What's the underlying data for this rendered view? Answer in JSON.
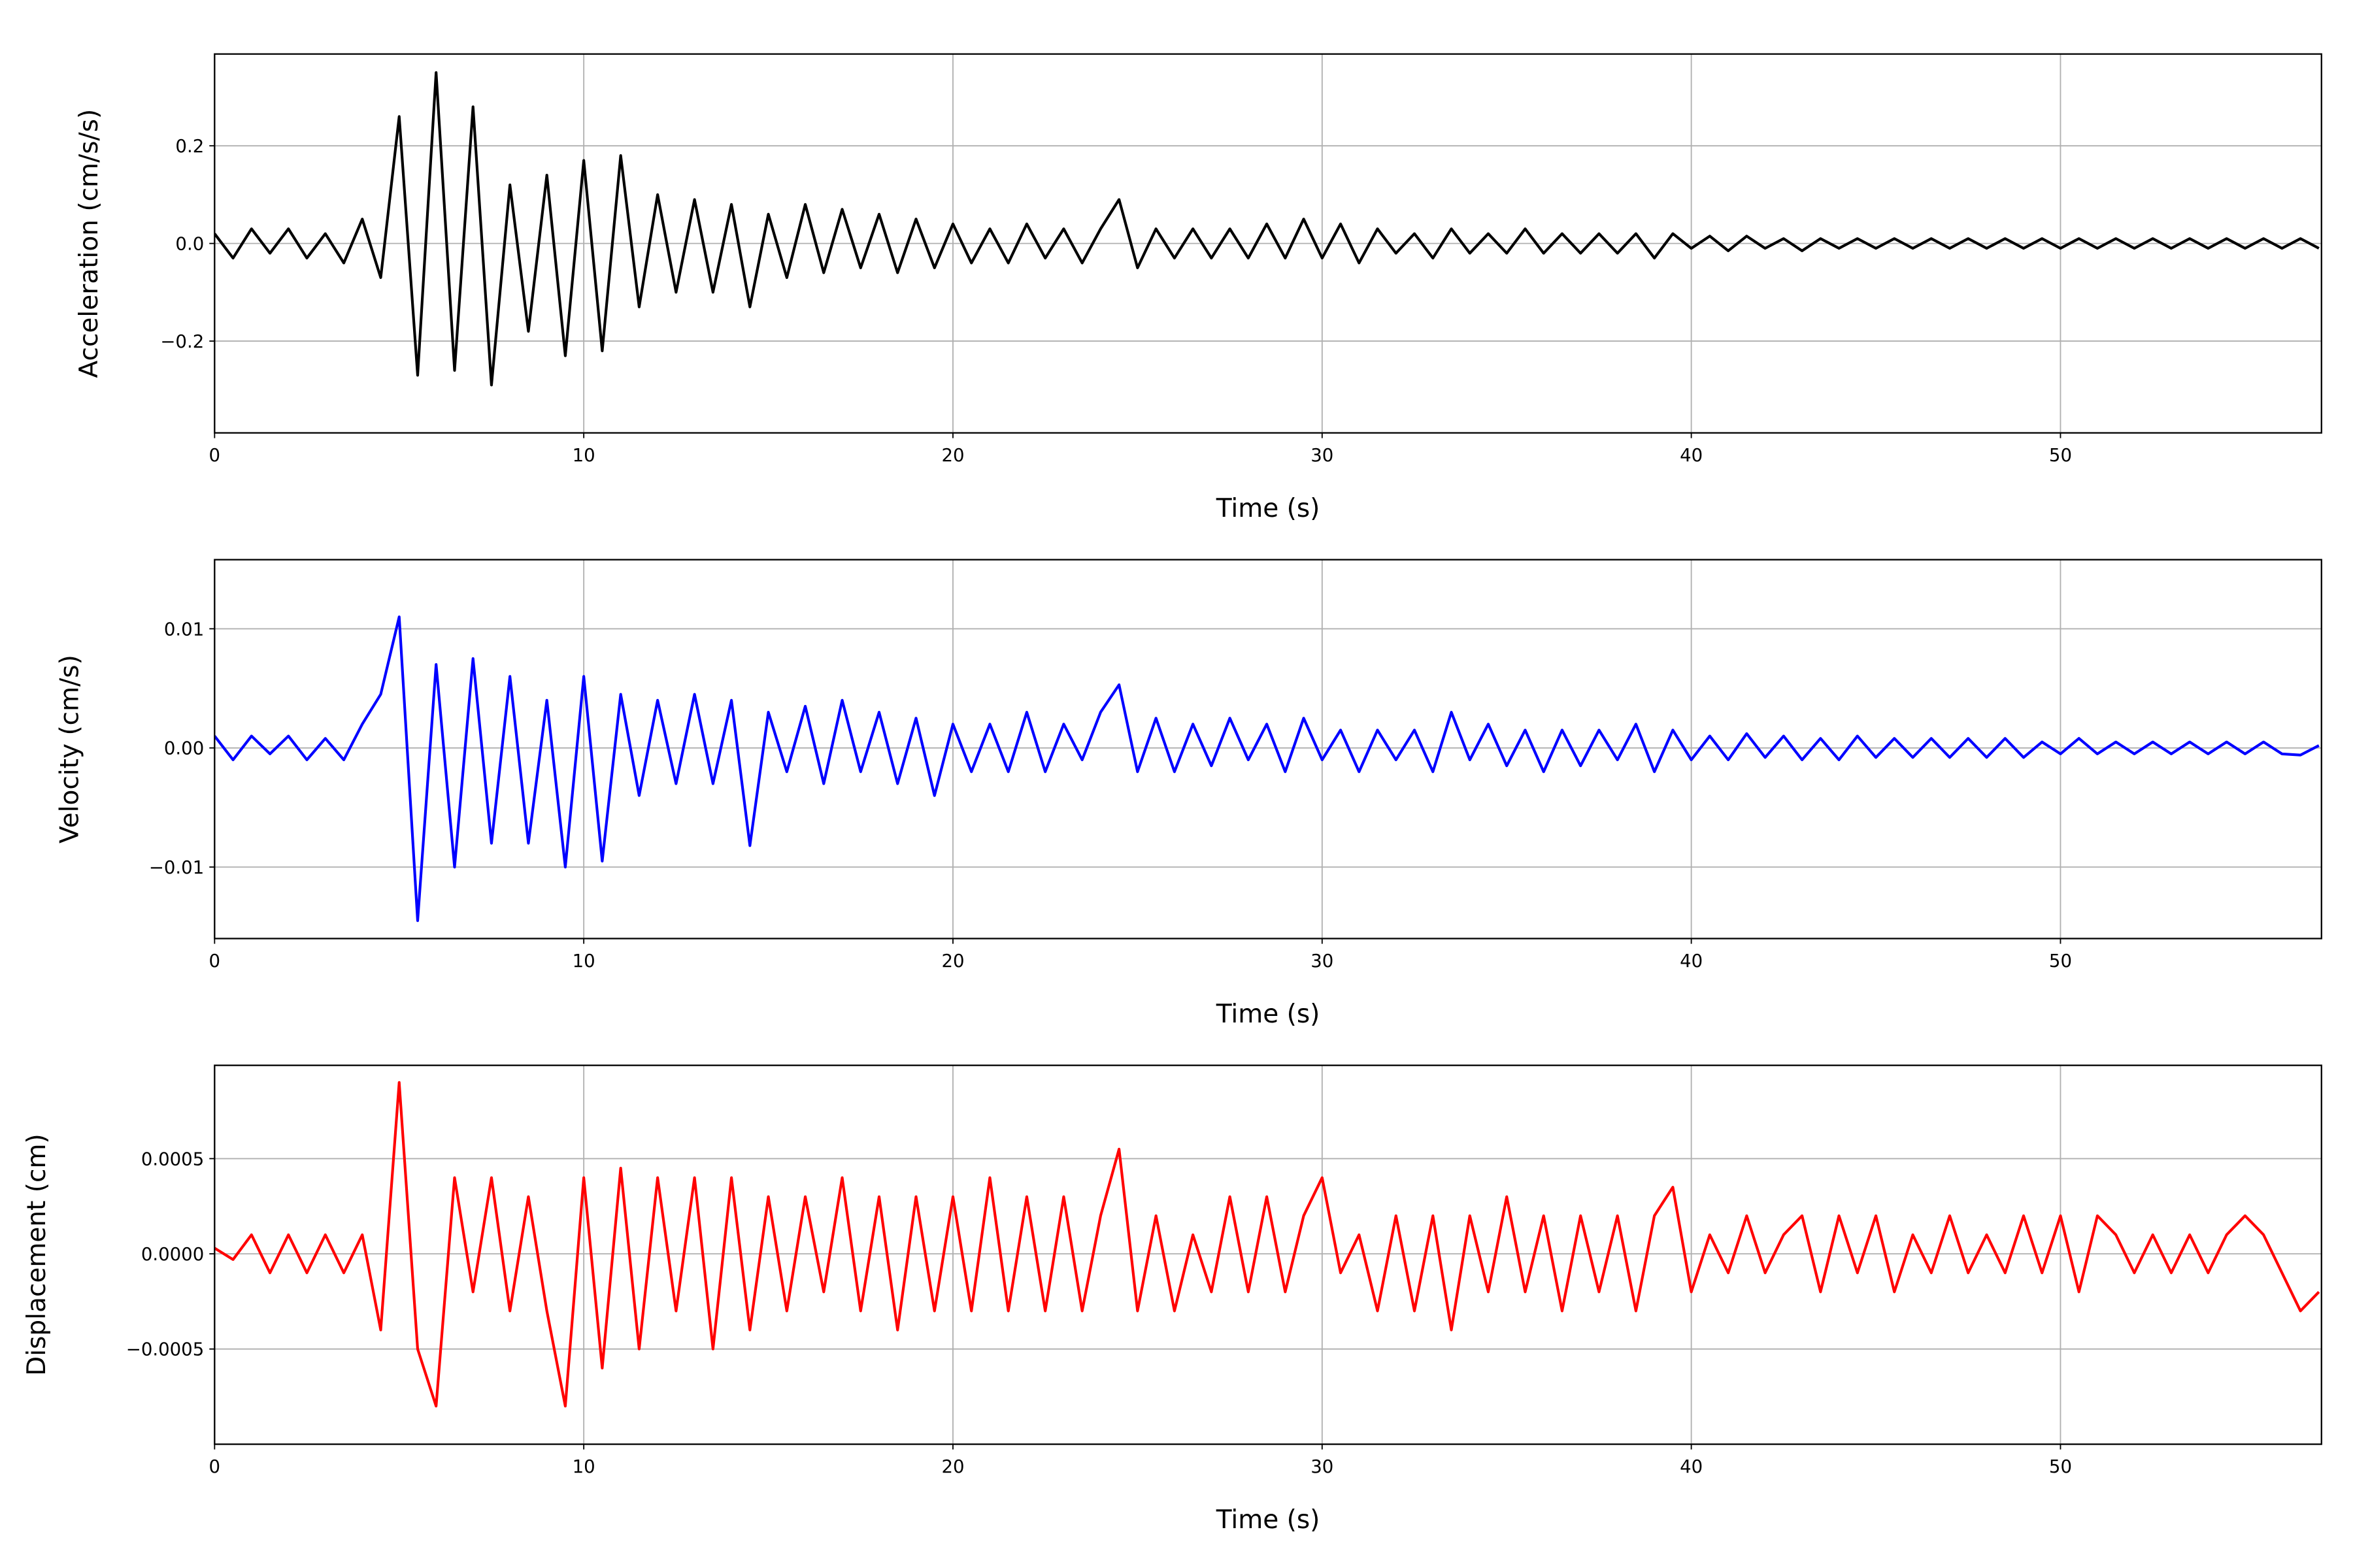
{
  "chart_data": [
    {
      "type": "line",
      "xlabel": "Time (s)",
      "ylabel": "Acceleration (cm/s/s)",
      "color": "#000000",
      "grid": true,
      "xlim": [
        0,
        57.07
      ],
      "xticks": [
        0,
        10,
        20,
        30,
        40,
        50
      ],
      "ylim": [
        -0.388,
        0.388
      ],
      "yticks": [
        {
          "value": -0.2,
          "label": "−0.2"
        },
        {
          "value": 0,
          "label": "0.0"
        },
        0.2
      ],
      "x": [
        0,
        0.5,
        1,
        1.5,
        2,
        2.5,
        3,
        3.5,
        4,
        4.5,
        5,
        5.5,
        6,
        6.5,
        7,
        7.5,
        8,
        8.5,
        9,
        9.5,
        10,
        10.5,
        11,
        11.5,
        12,
        12.5,
        13,
        13.5,
        14,
        14.5,
        15,
        15.5,
        16,
        16.5,
        17,
        17.5,
        18,
        18.5,
        19,
        19.5,
        20,
        20.5,
        21,
        21.5,
        22,
        22.5,
        23,
        23.5,
        24,
        24.5,
        25,
        25.5,
        26,
        26.5,
        27,
        27.5,
        28,
        28.5,
        29,
        29.5,
        30,
        30.5,
        31,
        31.5,
        32,
        32.5,
        33,
        33.5,
        34,
        34.5,
        35,
        35.5,
        36,
        36.5,
        37,
        37.5,
        38,
        38.5,
        39,
        39.5,
        40,
        40.5,
        41,
        41.5,
        42,
        42.5,
        43,
        43.5,
        44,
        44.5,
        45,
        45.5,
        46,
        46.5,
        47,
        47.5,
        48,
        48.5,
        49,
        49.5,
        50,
        50.5,
        51,
        51.5,
        52,
        52.5,
        53,
        53.5,
        54,
        54.5,
        55,
        55.5,
        56,
        56.5,
        57
      ],
      "values": [
        0.02,
        -0.03,
        0.03,
        -0.02,
        0.03,
        -0.03,
        0.02,
        -0.04,
        0.05,
        -0.07,
        0.26,
        -0.27,
        0.35,
        -0.26,
        0.28,
        -0.29,
        0.12,
        -0.18,
        0.14,
        -0.23,
        0.17,
        -0.22,
        0.18,
        -0.13,
        0.1,
        -0.1,
        0.09,
        -0.1,
        0.08,
        -0.13,
        0.06,
        -0.07,
        0.08,
        -0.06,
        0.07,
        -0.05,
        0.06,
        -0.06,
        0.05,
        -0.05,
        0.04,
        -0.04,
        0.03,
        -0.04,
        0.04,
        -0.03,
        0.03,
        -0.04,
        0.03,
        0.09,
        -0.05,
        0.03,
        -0.03,
        0.03,
        -0.03,
        0.03,
        -0.03,
        0.04,
        -0.03,
        0.05,
        -0.03,
        0.04,
        -0.04,
        0.03,
        -0.02,
        0.02,
        -0.03,
        0.03,
        -0.02,
        0.02,
        -0.02,
        0.03,
        -0.02,
        0.02,
        -0.02,
        0.02,
        -0.02,
        0.02,
        -0.03,
        0.02,
        -0.01,
        0.015,
        -0.015,
        0.015,
        -0.01,
        0.01,
        -0.015,
        0.01,
        -0.01,
        0.01,
        -0.01,
        0.01,
        -0.01,
        0.01,
        -0.01,
        0.01,
        -0.01,
        0.01,
        -0.01,
        0.01,
        -0.01,
        0.01,
        -0.01,
        0.01,
        -0.01,
        0.01,
        -0.01,
        0.01,
        -0.01,
        0.01,
        -0.01,
        0.01,
        -0.01,
        0.01,
        -0.01
      ]
    },
    {
      "type": "line",
      "xlabel": "Time (s)",
      "ylabel": "Velocity (cm/s)",
      "color": "#0000ff",
      "grid": true,
      "xlim": [
        0,
        57.07
      ],
      "xticks": [
        0,
        10,
        20,
        30,
        40,
        50
      ],
      "ylim": [
        -0.016,
        0.0158
      ],
      "yticks": [
        {
          "value": -0.01,
          "label": "−0.01"
        },
        {
          "value": 0,
          "label": "0.00"
        },
        0.01
      ],
      "x": [
        0,
        0.5,
        1,
        1.5,
        2,
        2.5,
        3,
        3.5,
        4,
        4.5,
        5,
        5.5,
        6,
        6.5,
        7,
        7.5,
        8,
        8.5,
        9,
        9.5,
        10,
        10.5,
        11,
        11.5,
        12,
        12.5,
        13,
        13.5,
        14,
        14.5,
        15,
        15.5,
        16,
        16.5,
        17,
        17.5,
        18,
        18.5,
        19,
        19.5,
        20,
        20.5,
        21,
        21.5,
        22,
        22.5,
        23,
        23.5,
        24,
        24.5,
        25,
        25.5,
        26,
        26.5,
        27,
        27.5,
        28,
        28.5,
        29,
        29.5,
        30,
        30.5,
        31,
        31.5,
        32,
        32.5,
        33,
        33.5,
        34,
        34.5,
        35,
        35.5,
        36,
        36.5,
        37,
        37.5,
        38,
        38.5,
        39,
        39.5,
        40,
        40.5,
        41,
        41.5,
        42,
        42.5,
        43,
        43.5,
        44,
        44.5,
        45,
        45.5,
        46,
        46.5,
        47,
        47.5,
        48,
        48.5,
        49,
        49.5,
        50,
        50.5,
        51,
        51.5,
        52,
        52.5,
        53,
        53.5,
        54,
        54.5,
        55,
        55.5,
        56,
        56.5,
        57
      ],
      "values": [
        0.001,
        -0.001,
        0.001,
        -0.0005,
        0.001,
        -0.001,
        0.0008,
        -0.001,
        0.002,
        0.0045,
        0.011,
        -0.0145,
        0.007,
        -0.01,
        0.0075,
        -0.008,
        0.006,
        -0.008,
        0.004,
        -0.01,
        0.006,
        -0.0095,
        0.0045,
        -0.004,
        0.004,
        -0.003,
        0.0045,
        -0.003,
        0.004,
        -0.0082,
        0.003,
        -0.002,
        0.0035,
        -0.003,
        0.004,
        -0.002,
        0.003,
        -0.003,
        0.0025,
        -0.004,
        0.002,
        -0.002,
        0.002,
        -0.002,
        0.003,
        -0.002,
        0.002,
        -0.001,
        0.003,
        0.0053,
        -0.002,
        0.0025,
        -0.002,
        0.002,
        -0.0015,
        0.0025,
        -0.001,
        0.002,
        -0.002,
        0.0025,
        -0.001,
        0.0015,
        -0.002,
        0.0015,
        -0.001,
        0.0015,
        -0.002,
        0.003,
        -0.001,
        0.002,
        -0.0015,
        0.0015,
        -0.002,
        0.0015,
        -0.0015,
        0.0015,
        -0.001,
        0.002,
        -0.002,
        0.0015,
        -0.001,
        0.001,
        -0.001,
        0.0012,
        -0.0008,
        0.001,
        -0.001,
        0.0008,
        -0.001,
        0.001,
        -0.0008,
        0.0008,
        -0.0008,
        0.0008,
        -0.0008,
        0.0008,
        -0.0008,
        0.0008,
        -0.0008,
        0.0005,
        -0.0005,
        0.0008,
        -0.0005,
        0.0005,
        -0.0005,
        0.0005,
        -0.0005,
        0.0005,
        -0.0005,
        0.0005,
        -0.0005,
        0.0005,
        -0.0005,
        -0.0006,
        0.0002
      ]
    },
    {
      "type": "line",
      "xlabel": "Time (s)",
      "ylabel": "Displacement (cm)",
      "color": "#ff0000",
      "grid": true,
      "xlim": [
        0,
        57.07
      ],
      "xticks": [
        0,
        10,
        20,
        30,
        40,
        50
      ],
      "ylim": [
        -0.001,
        0.00099
      ],
      "yticks": [
        {
          "value": -0.0005,
          "label": "−0.0005"
        },
        {
          "value": 0,
          "label": "0.0000"
        },
        0.0005
      ],
      "x": [
        0,
        0.5,
        1,
        1.5,
        2,
        2.5,
        3,
        3.5,
        4,
        4.5,
        5,
        5.5,
        6,
        6.5,
        7,
        7.5,
        8,
        8.5,
        9,
        9.5,
        10,
        10.5,
        11,
        11.5,
        12,
        12.5,
        13,
        13.5,
        14,
        14.5,
        15,
        15.5,
        16,
        16.5,
        17,
        17.5,
        18,
        18.5,
        19,
        19.5,
        20,
        20.5,
        21,
        21.5,
        22,
        22.5,
        23,
        23.5,
        24,
        24.5,
        25,
        25.5,
        26,
        26.5,
        27,
        27.5,
        28,
        28.5,
        29,
        29.5,
        30,
        30.5,
        31,
        31.5,
        32,
        32.5,
        33,
        33.5,
        34,
        34.5,
        35,
        35.5,
        36,
        36.5,
        37,
        37.5,
        38,
        38.5,
        39,
        39.5,
        40,
        40.5,
        41,
        41.5,
        42,
        42.5,
        43,
        43.5,
        44,
        44.5,
        45,
        45.5,
        46,
        46.5,
        47,
        47.5,
        48,
        48.5,
        49,
        49.5,
        50,
        50.5,
        51,
        51.5,
        52,
        52.5,
        53,
        53.5,
        54,
        54.5,
        55,
        55.5,
        56,
        56.5,
        57
      ],
      "values": [
        3e-05,
        -3e-05,
        0.0001,
        -0.0001,
        0.0001,
        -0.0001,
        0.0001,
        -0.0001,
        0.0001,
        -0.0004,
        0.0009,
        -0.0005,
        -0.0008,
        0.0004,
        -0.0002,
        0.0004,
        -0.0003,
        0.0003,
        -0.0003,
        -0.0008,
        0.0004,
        -0.0006,
        0.00045,
        -0.0005,
        0.0004,
        -0.0003,
        0.0004,
        -0.0005,
        0.0004,
        -0.0004,
        0.0003,
        -0.0003,
        0.0003,
        -0.0002,
        0.0004,
        -0.0003,
        0.0003,
        -0.0004,
        0.0003,
        -0.0003,
        0.0003,
        -0.0003,
        0.0004,
        -0.0003,
        0.0003,
        -0.0003,
        0.0003,
        -0.0003,
        0.0002,
        0.00055,
        -0.0003,
        0.0002,
        -0.0003,
        0.0001,
        -0.0002,
        0.0003,
        -0.0002,
        0.0003,
        -0.0002,
        0.0002,
        0.0004,
        -0.0001,
        0.0001,
        -0.0003,
        0.0002,
        -0.0003,
        0.0002,
        -0.0004,
        0.0002,
        -0.0002,
        0.0003,
        -0.0002,
        0.0002,
        -0.0003,
        0.0002,
        -0.0002,
        0.0002,
        -0.0003,
        0.0002,
        0.00035,
        -0.0002,
        0.0001,
        -0.0001,
        0.0002,
        -0.0001,
        0.0001,
        0.0002,
        -0.0002,
        0.0002,
        -0.0001,
        0.0002,
        -0.0002,
        0.0001,
        -0.0001,
        0.0002,
        -0.0001,
        0.0001,
        -0.0001,
        0.0002,
        -0.0001,
        0.0002,
        -0.0002,
        0.0002,
        0.0001,
        -0.0001,
        0.0001,
        -0.0001,
        0.0001,
        -0.0001,
        0.0001,
        0.0002,
        0.0001,
        -0.0001,
        -0.0003,
        -0.0002
      ]
    }
  ]
}
